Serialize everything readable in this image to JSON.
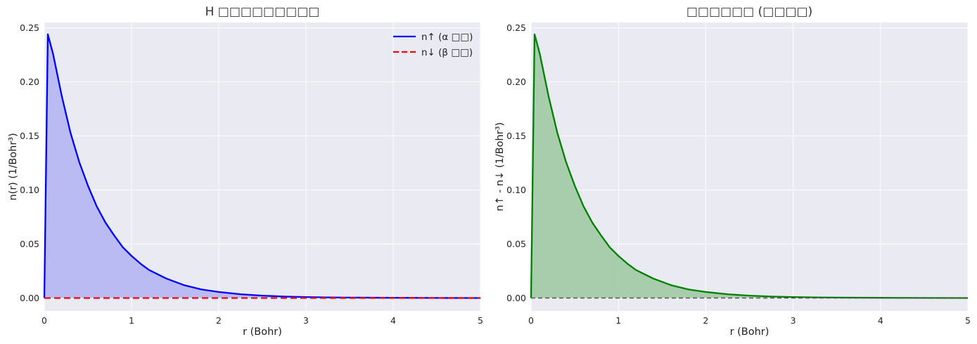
{
  "colors": {
    "plot_bg": "#EAEAF2",
    "grid": "#FFFFFF",
    "n_up": "#0000FF",
    "n_up_fill": "#B8B8F3",
    "n_down": "#FF0000",
    "diff": "#008000",
    "diff_fill": "#A3CBA9",
    "zero_line": "#555555"
  },
  "chart_data": [
    {
      "type": "area",
      "title": "H □□□□□□□□□",
      "xlabel": "r (Bohr)",
      "ylabel": "n(r) (1/Bohr³)",
      "xlim": [
        0,
        5
      ],
      "ylim": [
        -0.012,
        0.255
      ],
      "xticks": [
        0,
        1,
        2,
        3,
        4,
        5
      ],
      "yticks": [
        0.0,
        0.05,
        0.1,
        0.15,
        0.2,
        0.25
      ],
      "xtick_labels": [
        "0",
        "1",
        "2",
        "3",
        "4",
        "5"
      ],
      "ytick_labels": [
        "0.00",
        "0.05",
        "0.10",
        "0.15",
        "0.20",
        "0.25"
      ],
      "grid": true,
      "legend": {
        "placement": "top-right",
        "entries": [
          {
            "label": "n↑ (α □□)",
            "color": "#0000FF",
            "style": "solid"
          },
          {
            "label": "n↓ (β □□)",
            "color": "#FF0000",
            "style": "dashed"
          }
        ]
      },
      "series": [
        {
          "name": "n↑ (α □□)",
          "style": "solid",
          "filled": true,
          "x": [
            0,
            0.04,
            0.1,
            0.2,
            0.3,
            0.4,
            0.5,
            0.6,
            0.7,
            0.8,
            0.9,
            1.0,
            1.1,
            1.2,
            1.3,
            1.4,
            1.5,
            1.6,
            1.8,
            2.0,
            2.25,
            2.5,
            2.75,
            3.0,
            3.25,
            3.5,
            4.0,
            4.5,
            5.0
          ],
          "y": [
            0.0,
            0.244,
            0.226,
            0.187,
            0.153,
            0.126,
            0.104,
            0.085,
            0.07,
            0.058,
            0.047,
            0.039,
            0.032,
            0.026,
            0.022,
            0.018,
            0.015,
            0.012,
            0.008,
            0.0056,
            0.0035,
            0.0022,
            0.0014,
            0.0009,
            0.0006,
            0.0004,
            0.0002,
            0.0001,
            0.0
          ]
        },
        {
          "name": "n↓ (β □□)",
          "style": "dashed",
          "filled": false,
          "x": [
            0,
            5
          ],
          "y": [
            0.0,
            0.0
          ]
        }
      ]
    },
    {
      "type": "area",
      "title": "□□□□□□ (□□□□)",
      "xlabel": "r (Bohr)",
      "ylabel": "n↑ - n↓ (1/Bohr³)",
      "xlim": [
        0,
        5
      ],
      "ylim": [
        -0.012,
        0.255
      ],
      "xticks": [
        0,
        1,
        2,
        3,
        4,
        5
      ],
      "yticks": [
        0.0,
        0.05,
        0.1,
        0.15,
        0.2,
        0.25
      ],
      "xtick_labels": [
        "0",
        "1",
        "2",
        "3",
        "4",
        "5"
      ],
      "ytick_labels": [
        "0.00",
        "0.05",
        "0.10",
        "0.15",
        "0.20",
        "0.25"
      ],
      "grid": true,
      "reference_line": {
        "y": 0,
        "style": "dashed"
      },
      "series": [
        {
          "style": "solid",
          "filled": true,
          "x": [
            0,
            0.04,
            0.1,
            0.2,
            0.3,
            0.4,
            0.5,
            0.6,
            0.7,
            0.8,
            0.9,
            1.0,
            1.1,
            1.2,
            1.3,
            1.4,
            1.5,
            1.6,
            1.8,
            2.0,
            2.25,
            2.5,
            2.75,
            3.0,
            3.25,
            3.5,
            4.0,
            4.5,
            5.0
          ],
          "y": [
            0.0,
            0.244,
            0.226,
            0.187,
            0.153,
            0.126,
            0.104,
            0.085,
            0.07,
            0.058,
            0.047,
            0.039,
            0.032,
            0.026,
            0.022,
            0.018,
            0.015,
            0.012,
            0.008,
            0.0056,
            0.0035,
            0.0022,
            0.0014,
            0.0009,
            0.0006,
            0.0004,
            0.0002,
            0.0001,
            0.0
          ]
        }
      ]
    }
  ]
}
